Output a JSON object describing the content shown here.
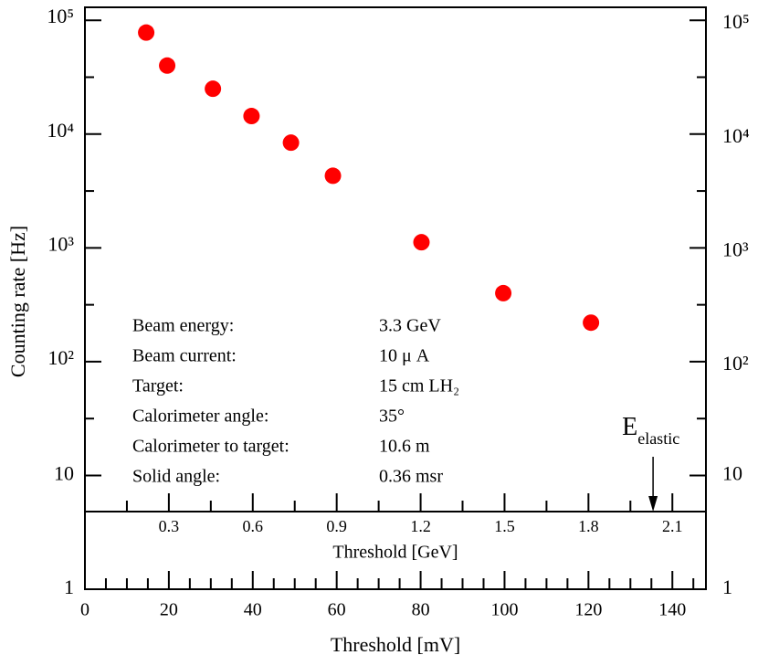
{
  "chart_data": {
    "type": "scatter",
    "ylabel": "Counting rate [Hz]",
    "xlabel": "Threshold  [mV]",
    "x2label": "Threshold  [GeV]",
    "color": "#ff0000",
    "log_y": true,
    "xlim": [
      0,
      148
    ],
    "ylim": [
      1,
      130000
    ],
    "x2lim": [
      0,
      2.22
    ],
    "xticks": [
      0,
      20,
      40,
      60,
      80,
      100,
      120,
      140
    ],
    "xminorticks": [
      5,
      10,
      15,
      25,
      30,
      35,
      45,
      50,
      55,
      65,
      70,
      75,
      85,
      90,
      95,
      105,
      110,
      115,
      125,
      130,
      135,
      145
    ],
    "x2ticks": [
      0.3,
      0.6,
      0.9,
      1.2,
      1.5,
      1.8,
      2.1
    ],
    "x2minorticks": [
      0.15,
      0.45,
      0.75,
      1.05,
      1.35,
      1.65,
      1.95
    ],
    "yticks": [
      1,
      10,
      {
        "value": 100,
        "label": "10²"
      },
      {
        "value": 1000,
        "label": "10³"
      },
      {
        "value": 10000,
        "label": "10⁴"
      },
      {
        "value": 100000,
        "label": "10⁵"
      }
    ],
    "yminorticks": [
      31.6,
      316,
      3160,
      31600
    ],
    "x": [
      14.6,
      19.6,
      30.5,
      39.7,
      49.1,
      59.1,
      80.2,
      99.7,
      120.6
    ],
    "values": [
      78000,
      40000,
      25000,
      14400,
      8400,
      4300,
      1120,
      400,
      220
    ],
    "annotations": [
      {
        "label": "Beam energy:",
        "value": "3.3  GeV"
      },
      {
        "label": "Beam current:",
        "value": "10 μ A"
      },
      {
        "label": "Target:",
        "value": "15  cm  LH₂"
      },
      {
        "label": "Calorimeter angle:",
        "value": "35°"
      },
      {
        "label": "Calorimeter to target:",
        "value": "10.6   m"
      },
      {
        "label": "Solid angle:",
        "value": "0.36  msr"
      }
    ],
    "marker": {
      "label": "E",
      "sub": "elastic",
      "x": 135.4
    }
  }
}
